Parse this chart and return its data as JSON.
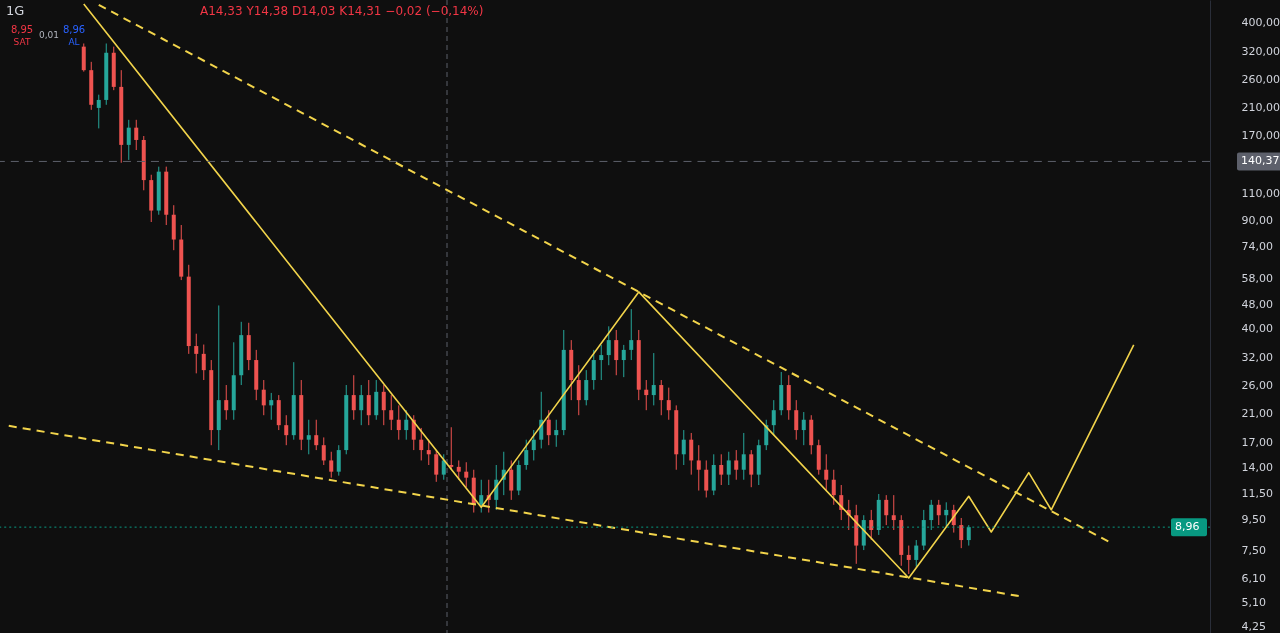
{
  "chart_data": {
    "type": "candlestick",
    "title": "1G",
    "annotations": [
      "A14,33 Y14,38 D14,03 K14,31 −0,02 (−0,14%)",
      "8,95",
      "SAT",
      "0,01",
      "8,96",
      "AL"
    ],
    "categories": [
      null,
      null,
      null,
      null,
      null,
      null,
      null,
      null,
      null,
      null,
      null,
      null,
      null,
      null,
      null,
      null,
      null,
      null,
      null,
      null,
      null,
      null,
      null,
      null,
      null,
      null,
      null,
      null,
      null,
      null,
      null,
      null,
      null,
      null,
      null,
      null,
      null,
      null,
      null,
      null,
      null,
      null,
      null,
      null,
      null,
      null,
      null,
      null,
      null,
      null,
      null,
      null,
      null,
      null,
      null,
      null,
      null,
      null,
      null,
      null,
      null,
      null,
      null,
      null,
      null,
      null,
      null,
      null,
      null,
      null,
      null,
      null,
      null,
      null,
      null,
      null,
      null,
      null,
      null,
      null,
      null,
      null,
      null,
      null,
      null,
      null,
      null,
      null,
      null,
      null,
      null,
      null,
      null,
      null,
      null,
      null,
      null,
      null,
      null,
      null,
      null,
      null,
      null,
      null,
      null,
      null,
      null,
      null,
      null,
      null,
      null,
      null,
      null,
      null,
      null,
      null,
      null,
      null,
      null,
      null,
      null,
      null,
      null,
      null,
      null,
      null,
      null,
      null,
      null,
      null,
      null,
      null,
      null,
      null,
      null,
      null,
      null,
      null,
      null,
      null,
      null,
      null,
      null,
      null,
      null,
      null,
      null,
      null,
      null,
      null,
      null,
      null,
      null,
      null,
      null,
      null,
      null,
      null,
      null,
      null
    ],
    "ohlc": [
      null,
      null,
      null,
      null,
      null,
      null,
      null,
      null,
      null,
      null,
      [
        333,
        341,
        276,
        279
      ],
      [
        279,
        297,
        207,
        215
      ],
      [
        210,
        232,
        180,
        223
      ],
      [
        223,
        341,
        215,
        318
      ],
      [
        318,
        333,
        240,
        246
      ],
      [
        246,
        279,
        139,
        159
      ],
      [
        159,
        192,
        142,
        181
      ],
      [
        181,
        192,
        153,
        165
      ],
      [
        165,
        170,
        113,
        122
      ],
      [
        122,
        127,
        89,
        97
      ],
      [
        97,
        135,
        94,
        130
      ],
      [
        130,
        135,
        87,
        94
      ],
      [
        94,
        101,
        72,
        78
      ],
      [
        78,
        87,
        57.5,
        59
      ],
      [
        59,
        64.5,
        33,
        35
      ],
      [
        35,
        38.4,
        28.5,
        33
      ],
      [
        33,
        35.4,
        27.1,
        29.2
      ],
      [
        29.2,
        31.5,
        16.6,
        18.6
      ],
      [
        18.6,
        47.5,
        16,
        23.3
      ],
      [
        23.3,
        26.1,
        20.1,
        21.6
      ],
      [
        21.6,
        36,
        20.1,
        28.1
      ],
      [
        28.1,
        42,
        26.1,
        38
      ],
      [
        38,
        41.7,
        29.2,
        31.5
      ],
      [
        31.5,
        34,
        23.3,
        25.2
      ],
      [
        25.2,
        27.1,
        20.8,
        22.4
      ],
      [
        22.4,
        24.6,
        20.1,
        23.3
      ],
      [
        23.3,
        24.2,
        18.6,
        19.3
      ],
      [
        19.3,
        20.8,
        16.6,
        17.9
      ],
      [
        17.9,
        31,
        17.3,
        24.2
      ],
      [
        24.2,
        27.1,
        16,
        17.3
      ],
      [
        17.3,
        20.1,
        15.5,
        17.9
      ],
      [
        17.9,
        20.1,
        16,
        16.6
      ],
      [
        16.6,
        17.6,
        14.3,
        14.8
      ],
      [
        14.8,
        15.8,
        13,
        13.6
      ],
      [
        13.6,
        16.6,
        13.2,
        16
      ],
      [
        16,
        26.1,
        15.5,
        24.2
      ],
      [
        24.2,
        28.1,
        20.1,
        21.6
      ],
      [
        21.6,
        26.1,
        19.3,
        24.2
      ],
      [
        24.2,
        27.1,
        19.3,
        20.8
      ],
      [
        20.8,
        27.1,
        20.1,
        24.8
      ],
      [
        24.8,
        26.1,
        19.3,
        21.6
      ],
      [
        21.6,
        24.2,
        18.6,
        20.1
      ],
      [
        20.1,
        22.4,
        17.3,
        18.6
      ],
      [
        18.6,
        21.6,
        17.3,
        20.1
      ],
      [
        20.1,
        20.8,
        16,
        17.3
      ],
      [
        17.3,
        18.9,
        14.8,
        16
      ],
      [
        16,
        17.3,
        14.3,
        15.5
      ],
      [
        15.5,
        16,
        12.6,
        13.3
      ],
      [
        13.3,
        15.5,
        12.8,
        14.8
      ],
      [
        14.3,
        19,
        13.8,
        14.1
      ],
      [
        14.1,
        14.8,
        12.8,
        13.6
      ],
      [
        13.6,
        14.6,
        12.1,
        13
      ],
      [
        13,
        13.8,
        10,
        10.6
      ],
      [
        10.6,
        12.8,
        10,
        11.4
      ],
      [
        11.4,
        12.8,
        10,
        11
      ],
      [
        11,
        14.3,
        10.2,
        12.8
      ],
      [
        12.8,
        15.8,
        11.4,
        13.8
      ],
      [
        13.8,
        14.8,
        11,
        11.8
      ],
      [
        11.8,
        14.8,
        11.4,
        14.3
      ],
      [
        14.3,
        17.3,
        13.8,
        16
      ],
      [
        16,
        18.6,
        14.8,
        17.3
      ],
      [
        17.3,
        24.8,
        16.2,
        20.1
      ],
      [
        20.1,
        21.6,
        16.6,
        17.9
      ],
      [
        17.9,
        20.1,
        16.4,
        18.6
      ],
      [
        18.6,
        39.5,
        17.9,
        34
      ],
      [
        34,
        36.6,
        23.3,
        27.1
      ],
      [
        27.1,
        30.3,
        20.8,
        23.3
      ],
      [
        23.3,
        29.2,
        22.4,
        27.1
      ],
      [
        27.1,
        34,
        25.2,
        31.5
      ],
      [
        31.5,
        35.3,
        27.1,
        32.7
      ],
      [
        32.7,
        40.6,
        30.3,
        36.6
      ],
      [
        36.6,
        39.5,
        28.1,
        31.5
      ],
      [
        31.5,
        35.3,
        27.7,
        34
      ],
      [
        34,
        46.2,
        31.5,
        36.6
      ],
      [
        36.6,
        39.5,
        23.3,
        25.2
      ],
      [
        25.2,
        27.1,
        21.6,
        24.2
      ],
      [
        24.2,
        33.2,
        22.4,
        26.1
      ],
      [
        26.1,
        27.1,
        20.8,
        23.3
      ],
      [
        23.3,
        25.6,
        20.1,
        21.6
      ],
      [
        21.6,
        22.4,
        13.8,
        15.5
      ],
      [
        15.5,
        18.6,
        14.3,
        17.3
      ],
      [
        17.3,
        18.2,
        13.3,
        14.8
      ],
      [
        14.8,
        16.6,
        11.8,
        13.8
      ],
      [
        13.8,
        14.8,
        11.2,
        11.8
      ],
      [
        11.8,
        15.5,
        11.4,
        14.3
      ],
      [
        14.3,
        15.5,
        12.3,
        13.3
      ],
      [
        13.3,
        15.8,
        12.3,
        14.8
      ],
      [
        14.8,
        16,
        12.8,
        13.8
      ],
      [
        13.8,
        18.2,
        12.8,
        15.5
      ],
      [
        15.5,
        16,
        12.1,
        13.3
      ],
      [
        13.3,
        17.3,
        12.3,
        16.6
      ],
      [
        16.6,
        20.1,
        16,
        19.3
      ],
      [
        19.3,
        23.3,
        17.9,
        21.6
      ],
      [
        21.6,
        28.8,
        20.8,
        26.1
      ],
      [
        26.1,
        28.1,
        20.1,
        21.6
      ],
      [
        21.6,
        23.3,
        17.3,
        18.6
      ],
      [
        18.6,
        21.3,
        16.6,
        20.1
      ],
      [
        20.1,
        20.8,
        15.5,
        16.6
      ],
      [
        16.6,
        17.3,
        13.3,
        13.8
      ],
      [
        13.8,
        15.5,
        11.8,
        12.8
      ],
      [
        12.8,
        13.8,
        10.6,
        11.4
      ],
      [
        11.4,
        12.3,
        9.45,
        10.2
      ],
      [
        10.2,
        11,
        8.77,
        9.8
      ],
      [
        9.8,
        10.6,
        6.8,
        7.8
      ],
      [
        7.8,
        9.8,
        7.54,
        9.45
      ],
      [
        9.45,
        10.2,
        8.13,
        8.77
      ],
      [
        8.77,
        11.5,
        8.45,
        11
      ],
      [
        11,
        11.4,
        9.1,
        9.8
      ],
      [
        9.8,
        11.4,
        8.77,
        9.45
      ],
      [
        9.45,
        9.8,
        6.7,
        7.27
      ],
      [
        7.27,
        7.8,
        6.3,
        7
      ],
      [
        7,
        8.13,
        6.65,
        7.8
      ],
      [
        7.8,
        10.2,
        7.54,
        9.45
      ],
      [
        9.45,
        11,
        8.77,
        10.6
      ],
      [
        10.6,
        11,
        9.1,
        9.8
      ],
      [
        9.8,
        10.8,
        9,
        10.2
      ],
      [
        10.2,
        10.6,
        8.6,
        9.1
      ],
      [
        9.1,
        9.6,
        7.65,
        8.13
      ],
      [
        8.13,
        9.1,
        7.8,
        8.96
      ],
      null,
      null,
      null,
      null,
      null,
      null,
      null,
      null,
      null,
      null,
      null,
      null,
      null,
      null,
      null,
      null,
      null,
      null,
      null,
      null,
      null,
      null,
      null,
      null,
      null,
      null,
      null,
      null,
      null,
      null,
      null
    ],
    "colors": [
      null,
      null,
      null,
      null,
      null,
      null,
      null,
      null,
      null,
      null,
      "#ef5350",
      "#ef5350",
      "#26a69a",
      "#26a69a",
      "#ef5350",
      "#ef5350",
      "#26a69a",
      "#ef5350",
      "#ef5350",
      "#ef5350",
      "#26a69a",
      "#ef5350",
      "#ef5350",
      "#ef5350",
      "#ef5350",
      "#ef5350",
      "#ef5350",
      "#ef5350",
      "#26a69a",
      "#ef5350",
      "#26a69a",
      "#26a69a",
      "#ef5350",
      "#ef5350",
      "#ef5350",
      "#26a69a",
      "#ef5350",
      "#ef5350",
      "#26a69a",
      "#ef5350",
      "#26a69a",
      "#ef5350",
      "#ef5350",
      "#ef5350",
      "#26a69a",
      "#26a69a",
      "#ef5350",
      "#26a69a",
      "#ef5350",
      "#26a69a",
      "#ef5350",
      "#ef5350",
      "#ef5350",
      "#26a69a",
      "#ef5350",
      "#ef5350",
      "#ef5350",
      "#ef5350",
      "#26a69a",
      "#ef5350",
      "#ef5350",
      "#ef5350",
      "#ef5350",
      "#26a69a",
      "#ef5350",
      "#26a69a",
      "#26a69a",
      "#ef5350",
      "#26a69a",
      "#26a69a",
      "#26a69a",
      "#26a69a",
      "#ef5350",
      "#26a69a",
      "#26a69a",
      "#ef5350",
      "#ef5350",
      "#26a69a",
      "#26a69a",
      "#26a69a",
      "#26a69a",
      "#ef5350",
      "#26a69a",
      "#26a69a",
      "#ef5350",
      "#ef5350",
      "#26a69a",
      "#ef5350",
      "#ef5350",
      "#ef5350",
      "#26a69a",
      "#ef5350",
      "#ef5350",
      "#ef5350",
      "#26a69a",
      "#ef5350",
      "#26a69a",
      "#ef5350",
      "#26a69a",
      "#ef5350",
      "#26a69a",
      "#26a69a",
      "#26a69a",
      "#26a69a",
      "#ef5350",
      "#ef5350",
      "#26a69a",
      "#ef5350",
      "#ef5350",
      "#ef5350",
      "#ef5350",
      "#ef5350",
      "#ef5350",
      "#ef5350",
      "#26a69a",
      "#ef5350",
      "#26a69a",
      "#ef5350",
      "#ef5350",
      "#ef5350",
      "#ef5350",
      "#26a69a",
      "#26a69a",
      "#26a69a",
      "#ef5350",
      "#26a69a",
      "#ef5350",
      "#ef5350",
      "#26a69a",
      null,
      null,
      null,
      null,
      null,
      null,
      null,
      null,
      null,
      null,
      null,
      null,
      null,
      null,
      null,
      null,
      null,
      null,
      null,
      null,
      null,
      null,
      null,
      null,
      null,
      null,
      null,
      null,
      null,
      null,
      null
    ],
    "series": [
      {
        "type": "line",
        "color": "#f2d44b",
        "line_style": "dashed",
        "values": [
          null,
          null,
          null,
          null,
          null,
          null,
          null,
          null,
          null,
          null,
          null,
          null,
          456,
          null,
          null,
          null,
          null,
          null,
          null,
          null,
          null,
          null,
          null,
          null,
          null,
          null,
          null,
          null,
          null,
          null,
          null,
          null,
          null,
          null,
          null,
          null,
          null,
          null,
          null,
          null,
          null,
          null,
          null,
          null,
          null,
          null,
          null,
          null,
          null,
          null,
          null,
          null,
          null,
          null,
          null,
          null,
          null,
          null,
          null,
          null,
          null,
          null,
          null,
          null,
          null,
          null,
          null,
          null,
          null,
          null,
          null,
          null,
          null,
          null,
          null,
          null,
          null,
          null,
          null,
          null,
          null,
          null,
          null,
          null,
          null,
          null,
          null,
          null,
          null,
          null,
          null,
          null,
          null,
          null,
          null,
          null,
          null,
          null,
          null,
          null,
          null,
          null,
          null,
          null,
          null,
          null,
          null,
          null,
          null,
          null,
          null,
          null,
          null,
          null,
          null,
          null,
          null,
          null,
          null,
          null,
          null,
          null,
          null,
          null,
          null,
          null,
          null,
          null,
          null,
          null,
          null,
          null,
          null,
          null,
          null,
          null,
          null,
          null,
          null,
          null,
          null,
          null,
          null,
          null,
          null,
          null,
          null,
          7.95,
          null,
          null,
          null,
          null,
          null,
          null,
          null,
          null,
          null,
          null,
          null,
          null
        ]
      },
      {
        "type": "line",
        "color": "#f2d44b",
        "line_style": "dashed",
        "values": [
          19.2,
          null,
          null,
          null,
          null,
          null,
          null,
          null,
          null,
          null,
          null,
          null,
          null,
          null,
          null,
          null,
          null,
          null,
          null,
          null,
          null,
          null,
          null,
          null,
          null,
          null,
          null,
          null,
          null,
          null,
          null,
          null,
          null,
          null,
          null,
          null,
          null,
          null,
          null,
          null,
          null,
          null,
          null,
          null,
          null,
          null,
          null,
          null,
          null,
          null,
          null,
          null,
          null,
          null,
          null,
          null,
          null,
          null,
          null,
          null,
          null,
          null,
          null,
          null,
          null,
          null,
          null,
          null,
          null,
          null,
          null,
          null,
          null,
          null,
          null,
          null,
          null,
          null,
          null,
          null,
          null,
          null,
          null,
          null,
          null,
          null,
          null,
          null,
          null,
          null,
          null,
          null,
          null,
          null,
          null,
          null,
          null,
          null,
          null,
          null,
          null,
          null,
          null,
          null,
          null,
          null,
          null,
          null,
          null,
          null,
          null,
          null,
          null,
          null,
          null,
          null,
          null,
          null,
          null,
          null,
          null,
          null,
          null,
          null,
          null,
          null,
          null,
          null,
          null,
          null,
          null,
          null,
          null,
          null,
          null,
          5.32,
          null,
          null,
          null,
          null,
          null,
          null,
          null,
          null,
          null,
          null,
          null,
          null,
          null,
          null,
          null,
          null,
          null,
          null,
          null,
          null,
          null,
          null,
          null,
          null
        ]
      },
      {
        "type": "line",
        "color": "#f2d44b",
        "line_style": "solid",
        "values": [
          null,
          null,
          null,
          null,
          null,
          null,
          null,
          null,
          null,
          null,
          459,
          null,
          null,
          null,
          null,
          null,
          null,
          null,
          null,
          null,
          null,
          null,
          null,
          null,
          null,
          null,
          null,
          null,
          null,
          null,
          null,
          null,
          null,
          null,
          null,
          null,
          null,
          null,
          null,
          null,
          null,
          null,
          null,
          null,
          null,
          null,
          null,
          null,
          null,
          null,
          null,
          null,
          null,
          null,
          null,
          null,
          null,
          null,
          null,
          null,
          null,
          null,
          null,
          10.4,
          null,
          null,
          null,
          null,
          null,
          null,
          null,
          null,
          null,
          null,
          null,
          null,
          null,
          null,
          null,
          null,
          null,
          null,
          null,
          null,
          52.6,
          null,
          null,
          null,
          null,
          null,
          null,
          null,
          null,
          null,
          null,
          null,
          null,
          null,
          null,
          null,
          null,
          null,
          null,
          null,
          null,
          null,
          null,
          null,
          null,
          null,
          null,
          null,
          null,
          null,
          null,
          null,
          null,
          null,
          null,
          null,
          6.11,
          null,
          null,
          null,
          null,
          null,
          null,
          null,
          11.3,
          null,
          null,
          8.64,
          null,
          null,
          null,
          null,
          13.5,
          null,
          null,
          10.2,
          null,
          null,
          null,
          null,
          null,
          null,
          null,
          null,
          null,
          null,
          35.3,
          null,
          null,
          null,
          null,
          null,
          null,
          null,
          null,
          null
        ]
      }
    ],
    "ylim": [
      4.04,
      473
    ],
    "log": true,
    "tick_labels": "y",
    "yticks": [
      {
        "value": 4.25,
        "label": "4,25"
      },
      {
        "value": 5.1,
        "label": "5,10"
      },
      {
        "value": 6.1,
        "label": "6,10"
      },
      {
        "value": 7.5,
        "label": "7,50"
      },
      {
        "value": 9.5,
        "label": "9,50"
      },
      {
        "value": 11.5,
        "label": "11,50"
      },
      {
        "value": 14,
        "label": "14,00"
      },
      {
        "value": 17,
        "label": "17,00"
      },
      {
        "value": 21,
        "label": "21,00"
      },
      {
        "value": 26,
        "label": "26,00"
      },
      {
        "value": 32,
        "label": "32,00"
      },
      {
        "value": 40,
        "label": "40,00"
      },
      {
        "value": 48,
        "label": "48,00"
      },
      {
        "value": 58,
        "label": "58,00"
      },
      {
        "value": 74,
        "label": "74,00"
      },
      {
        "value": 90,
        "label": "90,00"
      },
      {
        "value": 110,
        "label": "110,00"
      },
      {
        "value": 170,
        "label": "170,00"
      },
      {
        "value": 210,
        "label": "210,00"
      },
      {
        "value": 260,
        "label": "260,00"
      },
      {
        "value": 320,
        "label": "320,00"
      },
      {
        "value": 400,
        "label": "400,00"
      }
    ],
    "ref_lines": [
      {
        "axis": "y",
        "value": 140.37,
        "label": "140,37",
        "color": "#5d606b",
        "line_style": "dashed"
      },
      {
        "axis": "y",
        "value": 8.96,
        "label": "8,96",
        "color": "#089981",
        "line_style": "dotted"
      }
    ]
  }
}
